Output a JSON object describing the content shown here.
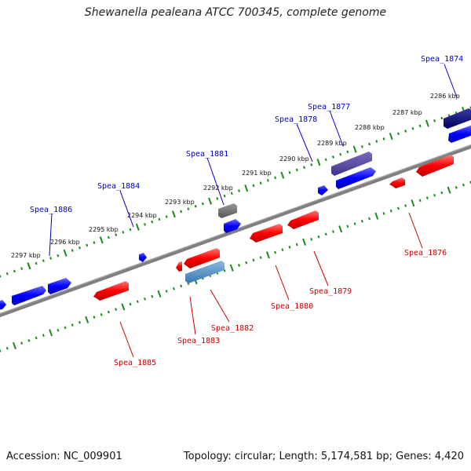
{
  "title": "Shewanella pealeana ATCC 700345, complete genome",
  "footer": {
    "accession": "Accession: NC_009901",
    "summary": "Topology: circular; Length: 5,174,581 bp; Genes: 4,420"
  },
  "colors": {
    "backbone": "#808080",
    "tick": "#1a8a1a",
    "forward_gene": "#0000ff",
    "reverse_gene": "#ff0000",
    "forward_label": "#0000cc",
    "reverse_label": "#cc0000"
  },
  "kbp_labels": [
    "2286 kbp",
    "2287 kbp",
    "2288 kbp",
    "2289 kbp",
    "2290 kbp",
    "2291 kbp",
    "2292 kbp",
    "2293 kbp",
    "2294 kbp",
    "2295 kbp",
    "2296 kbp",
    "2297 kbp"
  ],
  "forward_gene_labels": [
    "Spea_1874",
    "Spea_1877",
    "Spea_1878",
    "Spea_1881",
    "Spea_1884",
    "Spea_1886"
  ],
  "reverse_gene_labels": [
    "Spea_1876",
    "Spea_1879",
    "Spea_1880",
    "Spea_1882",
    "Spea_1883",
    "Spea_1885"
  ]
}
